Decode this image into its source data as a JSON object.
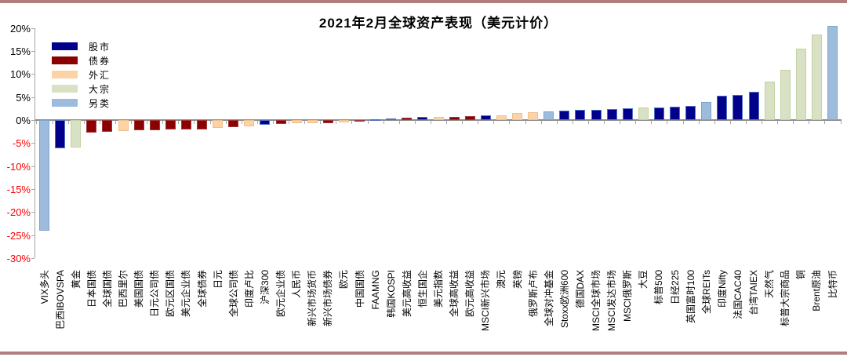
{
  "chart_data": {
    "type": "bar",
    "title": "2021年2月全球资产表现（美元计价）",
    "xlabel": "",
    "ylabel": "",
    "unit": "%",
    "ylim": [
      -30,
      20
    ],
    "ytick_step": 5,
    "yticks": [
      {
        "value": 20,
        "label": "20%"
      },
      {
        "value": 15,
        "label": "15%"
      },
      {
        "value": 10,
        "label": "10%"
      },
      {
        "value": 5,
        "label": "5%"
      },
      {
        "value": 0,
        "label": "0%"
      },
      {
        "value": -5,
        "label": "-5%"
      },
      {
        "value": -10,
        "label": "-10%"
      },
      {
        "value": -15,
        "label": "-15%"
      },
      {
        "value": -20,
        "label": "-20%"
      },
      {
        "value": -25,
        "label": "-25%"
      },
      {
        "value": -30,
        "label": "-30%"
      }
    ],
    "grid": false,
    "legend_position": "top-left",
    "legend": [
      {
        "key": "equity",
        "label": "股市",
        "color": "#00008B",
        "border": "#4F6FC8"
      },
      {
        "key": "bond",
        "label": "债券",
        "color": "#8B0000",
        "border": "#A03A3A"
      },
      {
        "key": "fx",
        "label": "外汇",
        "color": "#FBD3A6",
        "border": "#EFC08C"
      },
      {
        "key": "commodity",
        "label": "大宗",
        "color": "#D8E1C3",
        "border": "#C3D1A4"
      },
      {
        "key": "alt",
        "label": "另类",
        "color": "#9DBBDC",
        "border": "#7FA3CC"
      }
    ],
    "bars": [
      {
        "label": "VIX多头",
        "key": "alt",
        "value": -24.0
      },
      {
        "label": "巴西IBOVSPA",
        "key": "equity",
        "value": -6.2
      },
      {
        "label": "黄金",
        "key": "commodity",
        "value": -5.9
      },
      {
        "label": "日本国债",
        "key": "bond",
        "value": -2.7
      },
      {
        "label": "全球国债",
        "key": "bond",
        "value": -2.6
      },
      {
        "label": "巴西里尔",
        "key": "fx",
        "value": -2.4
      },
      {
        "label": "美国国债",
        "key": "bond",
        "value": -2.3
      },
      {
        "label": "日元公司债",
        "key": "bond",
        "value": -2.2
      },
      {
        "label": "欧元区国债",
        "key": "bond",
        "value": -2.1
      },
      {
        "label": "美元企业债",
        "key": "bond",
        "value": -2.1
      },
      {
        "label": "全球债券",
        "key": "bond",
        "value": -2.0
      },
      {
        "label": "日元",
        "key": "fx",
        "value": -1.7
      },
      {
        "label": "全球公司债",
        "key": "bond",
        "value": -1.6
      },
      {
        "label": "印度卢比",
        "key": "fx",
        "value": -1.3
      },
      {
        "label": "沪深300",
        "key": "equity",
        "value": -1.1
      },
      {
        "label": "欧元企业债",
        "key": "bond",
        "value": -0.8
      },
      {
        "label": "人民币",
        "key": "fx",
        "value": -0.7
      },
      {
        "label": "新兴市场货币",
        "key": "fx",
        "value": -0.7
      },
      {
        "label": "新兴市场债券",
        "key": "bond",
        "value": -0.6
      },
      {
        "label": "欧元",
        "key": "fx",
        "value": -0.5
      },
      {
        "label": "中国国债",
        "key": "bond",
        "value": -0.1
      },
      {
        "label": "FAAMNG",
        "key": "equity",
        "value": 0.1
      },
      {
        "label": "韩国KOSPI",
        "key": "equity",
        "value": 0.4
      },
      {
        "label": "美元高收益",
        "key": "bond",
        "value": 0.5
      },
      {
        "label": "恒生国企",
        "key": "equity",
        "value": 0.6
      },
      {
        "label": "美元指数",
        "key": "fx",
        "value": 0.6
      },
      {
        "label": "全球高收益",
        "key": "bond",
        "value": 0.7
      },
      {
        "label": "欧元高收益",
        "key": "bond",
        "value": 0.8
      },
      {
        "label": "MSCI新兴市场",
        "key": "equity",
        "value": 1.0
      },
      {
        "label": "澳元",
        "key": "fx",
        "value": 1.1
      },
      {
        "label": "英镑",
        "key": "fx",
        "value": 1.5
      },
      {
        "label": "俄罗斯卢布",
        "key": "fx",
        "value": 1.7
      },
      {
        "label": "全球对冲基金",
        "key": "alt",
        "value": 1.9
      },
      {
        "label": "Stoxx欧洲600",
        "key": "equity",
        "value": 2.0
      },
      {
        "label": "德国DAX",
        "key": "equity",
        "value": 2.2
      },
      {
        "label": "MSCI全球市场",
        "key": "equity",
        "value": 2.3
      },
      {
        "label": "MSCI发达市场",
        "key": "equity",
        "value": 2.4
      },
      {
        "label": "MSCI俄罗斯",
        "key": "equity",
        "value": 2.6
      },
      {
        "label": "大豆",
        "key": "commodity",
        "value": 2.7
      },
      {
        "label": "标普500",
        "key": "equity",
        "value": 2.7
      },
      {
        "label": "日经225",
        "key": "equity",
        "value": 2.9
      },
      {
        "label": "英国富时100",
        "key": "equity",
        "value": 3.1
      },
      {
        "label": "全球REITs",
        "key": "alt",
        "value": 4.0
      },
      {
        "label": "印度Nifty",
        "key": "equity",
        "value": 5.3
      },
      {
        "label": "法国CAC40",
        "key": "equity",
        "value": 5.5
      },
      {
        "label": "台湾TAIEX",
        "key": "equity",
        "value": 6.2
      },
      {
        "label": "天然气",
        "key": "commodity",
        "value": 8.3
      },
      {
        "label": "标普大宗商品",
        "key": "commodity",
        "value": 11.0
      },
      {
        "label": "铜",
        "key": "commodity",
        "value": 15.5
      },
      {
        "label": "Brent原油",
        "key": "commodity",
        "value": 18.6
      },
      {
        "label": "比特币",
        "key": "alt",
        "value": 20.4
      }
    ]
  },
  "colors": {
    "frame_border": "#B17D7D",
    "axis_line": "#A6A6A6",
    "zero_line": "#8C8C8C",
    "negative_tick_label": "#FF0000",
    "positive_tick_label": "#000000",
    "background": "#FFFFFF"
  }
}
